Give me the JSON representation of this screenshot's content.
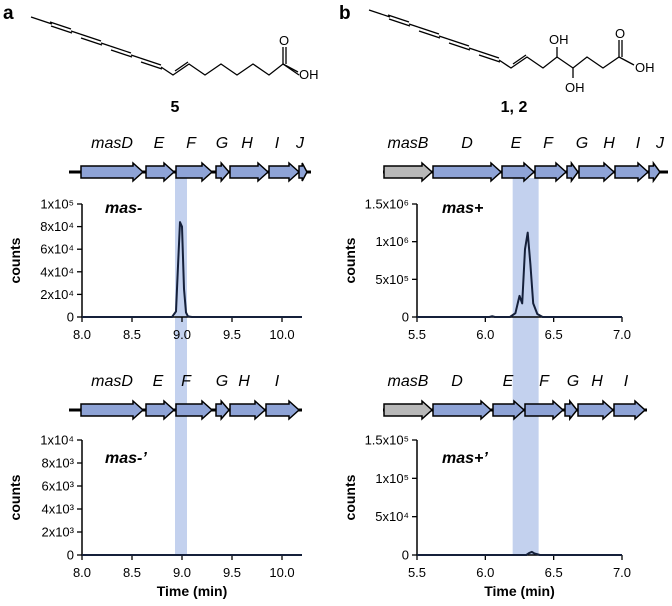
{
  "figure": {
    "panel_a": "a",
    "panel_b": "b",
    "compound_a": "5",
    "compound_b": "1, 2",
    "atoms_a": {
      "carbonyl_o": "O",
      "hydroxyl": "OH"
    },
    "atoms_b": {
      "oh_top": "OH",
      "oh_bottom": "OH",
      "carbonyl_o": "O",
      "hydroxyl": "OH"
    },
    "colors": {
      "gene_blue": "#8ea3d6",
      "gene_gray": "#b8b8b8",
      "highlight": "#c3d1ee",
      "trace": "#15203a"
    }
  },
  "gene_clusters": [
    {
      "genes": [
        {
          "label": "masD",
          "color": "blue"
        },
        {
          "label": "E",
          "color": "blue"
        },
        {
          "label": "F",
          "color": "blue"
        },
        {
          "label": "G",
          "color": "blue"
        },
        {
          "label": "H",
          "color": "blue"
        },
        {
          "label": "I",
          "color": "blue"
        },
        {
          "label": "J",
          "color": "blue"
        }
      ]
    },
    {
      "genes": [
        {
          "label": "masB",
          "color": "gray"
        },
        {
          "label": "D",
          "color": "blue"
        },
        {
          "label": "E",
          "color": "blue"
        },
        {
          "label": "F",
          "color": "blue"
        },
        {
          "label": "G",
          "color": "blue"
        },
        {
          "label": "H",
          "color": "blue"
        },
        {
          "label": "I",
          "color": "blue"
        },
        {
          "label": "J",
          "color": "blue"
        }
      ]
    },
    {
      "genes": [
        {
          "label": "masD",
          "color": "blue"
        },
        {
          "label": "E",
          "color": "blue"
        },
        {
          "label": "F",
          "color": "blue"
        },
        {
          "label": "G",
          "color": "blue"
        },
        {
          "label": "H",
          "color": "blue"
        },
        {
          "label": "I",
          "color": "blue"
        }
      ]
    },
    {
      "genes": [
        {
          "label": "masB",
          "color": "gray"
        },
        {
          "label": "D",
          "color": "blue"
        },
        {
          "label": "E",
          "color": "blue"
        },
        {
          "label": "F",
          "color": "blue"
        },
        {
          "label": "G",
          "color": "blue"
        },
        {
          "label": "H",
          "color": "blue"
        },
        {
          "label": "I",
          "color": "blue"
        }
      ]
    }
  ],
  "chart_data": [
    {
      "type": "line",
      "title": "mas-",
      "xlabel": "",
      "ylabel": "counts",
      "xlim": [
        8.0,
        10.2
      ],
      "ylim": [
        0,
        100000
      ],
      "xticks": [
        "8.0",
        "8.5",
        "9.0",
        "9.5",
        "10.0"
      ],
      "yticks": [
        "0",
        "2x10⁴",
        "4x10⁴",
        "6x10⁴",
        "8x10⁴",
        "1x10⁵"
      ],
      "highlight_x": [
        8.93,
        9.05
      ],
      "series": [
        {
          "x": [
            8.0,
            8.9,
            8.94,
            8.96,
            8.98,
            9.0,
            9.02,
            9.04,
            9.06,
            9.1,
            10.2
          ],
          "y": [
            0,
            0,
            5000,
            45000,
            84000,
            80000,
            25000,
            4000,
            500,
            0,
            0
          ]
        }
      ]
    },
    {
      "type": "line",
      "title": "mas+",
      "xlabel": "",
      "ylabel": "counts",
      "xlim": [
        5.5,
        7.0
      ],
      "ylim": [
        0,
        1500000
      ],
      "xticks": [
        "5.5",
        "6.0",
        "6.5",
        "7.0"
      ],
      "yticks": [
        "0",
        "5x10⁵",
        "1x10⁶",
        "1.5x10⁶"
      ],
      "highlight_x": [
        6.2,
        6.39
      ],
      "series": [
        {
          "x": [
            5.5,
            6.03,
            6.05,
            6.07,
            6.18,
            6.22,
            6.25,
            6.27,
            6.29,
            6.31,
            6.33,
            6.35,
            6.38,
            6.42,
            7.0
          ],
          "y": [
            0,
            0,
            10000,
            0,
            0,
            50000,
            280000,
            180000,
            900000,
            1120000,
            700000,
            180000,
            40000,
            0,
            0
          ]
        }
      ]
    },
    {
      "type": "line",
      "title": "mas-’",
      "xlabel": "Time (min)",
      "ylabel": "counts",
      "xlim": [
        8.0,
        10.2
      ],
      "ylim": [
        0,
        10000
      ],
      "xticks": [
        "8.0",
        "8.5",
        "9.0",
        "9.5",
        "10.0"
      ],
      "yticks": [
        "0",
        "2x10³",
        "4x10³",
        "6x10³",
        "8x10³",
        "1x10⁴"
      ],
      "highlight_x": [
        8.93,
        9.05
      ],
      "series": [
        {
          "x": [
            8.0,
            10.2
          ],
          "y": [
            0,
            0
          ]
        }
      ]
    },
    {
      "type": "line",
      "title": "mas+’",
      "xlabel": "Time (min)",
      "ylabel": "counts",
      "xlim": [
        5.5,
        7.0
      ],
      "ylim": [
        0,
        150000
      ],
      "xticks": [
        "5.5",
        "6.0",
        "6.5",
        "7.0"
      ],
      "yticks": [
        "0",
        "5x10⁴",
        "1x10⁵",
        "1.5x10⁵"
      ],
      "highlight_x": [
        6.2,
        6.39
      ],
      "series": [
        {
          "x": [
            5.5,
            6.3,
            6.32,
            6.34,
            6.36,
            6.4,
            7.0
          ],
          "y": [
            0,
            0,
            2500,
            4000,
            2000,
            0,
            0
          ]
        }
      ]
    }
  ]
}
